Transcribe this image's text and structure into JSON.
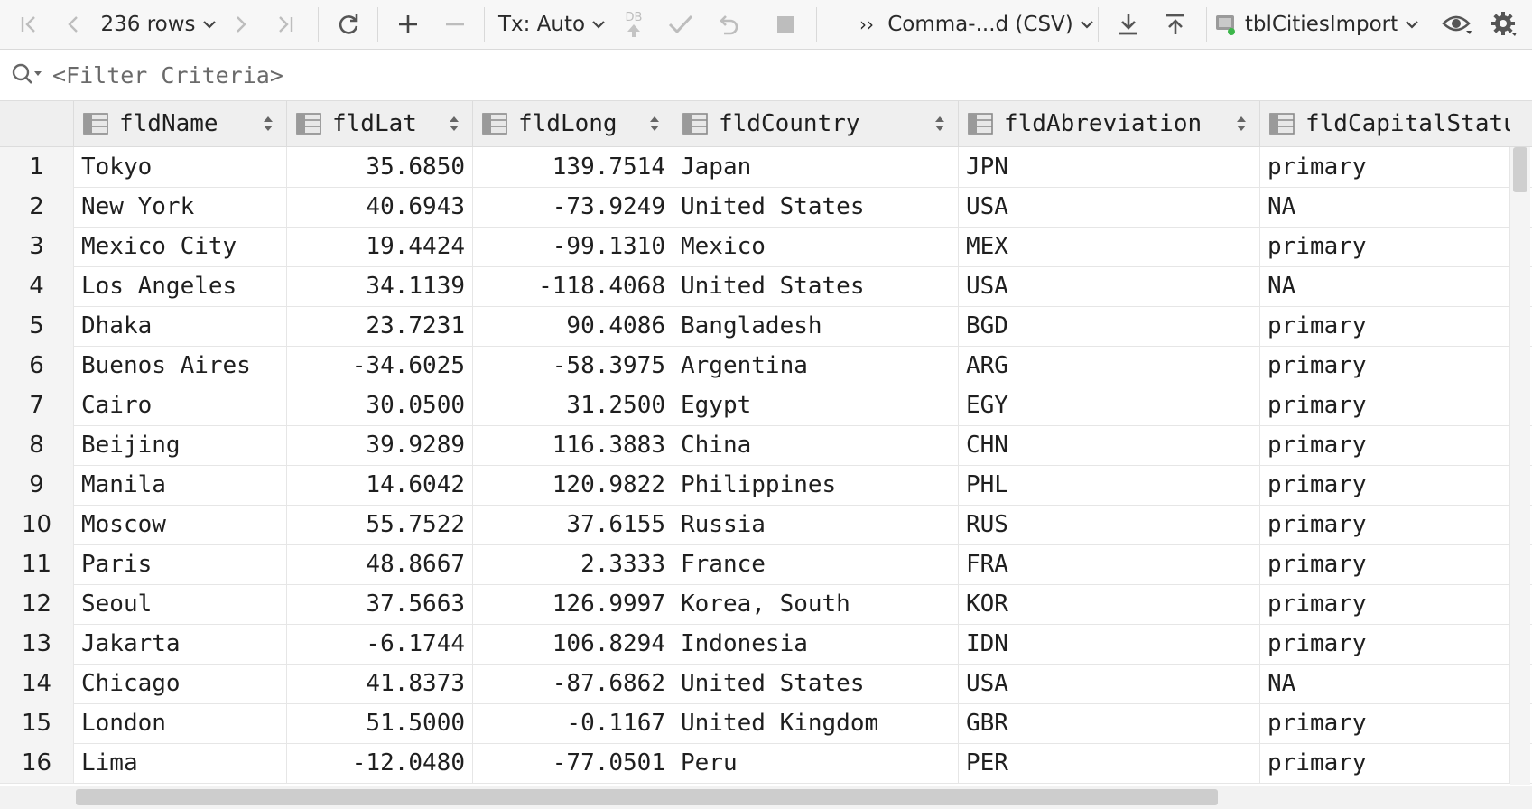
{
  "toolbar": {
    "rows_label": "236 rows",
    "tx_label": "Tx: Auto",
    "db_label": "DB",
    "more_label": "››",
    "format_label": "Comma-...d (CSV)",
    "table_label": "tblCitiesImport"
  },
  "filter": {
    "placeholder": "<Filter Criteria>"
  },
  "grid": {
    "columns": [
      "fldName",
      "fldLat",
      "fldLong",
      "fldCountry",
      "fldAbreviation",
      "fldCapitalStatu"
    ],
    "rows": [
      {
        "n": "1",
        "name": "Tokyo",
        "lat": "35.6850",
        "long": "139.7514",
        "country": "Japan",
        "abbr": "JPN",
        "capital": "primary"
      },
      {
        "n": "2",
        "name": "New York",
        "lat": "40.6943",
        "long": "-73.9249",
        "country": "United States",
        "abbr": "USA",
        "capital": "NA"
      },
      {
        "n": "3",
        "name": "Mexico City",
        "lat": "19.4424",
        "long": "-99.1310",
        "country": "Mexico",
        "abbr": "MEX",
        "capital": "primary"
      },
      {
        "n": "4",
        "name": "Los Angeles",
        "lat": "34.1139",
        "long": "-118.4068",
        "country": "United States",
        "abbr": "USA",
        "capital": "NA"
      },
      {
        "n": "5",
        "name": "Dhaka",
        "lat": "23.7231",
        "long": "90.4086",
        "country": "Bangladesh",
        "abbr": "BGD",
        "capital": "primary"
      },
      {
        "n": "6",
        "name": "Buenos Aires",
        "lat": "-34.6025",
        "long": "-58.3975",
        "country": "Argentina",
        "abbr": "ARG",
        "capital": "primary"
      },
      {
        "n": "7",
        "name": "Cairo",
        "lat": "30.0500",
        "long": "31.2500",
        "country": "Egypt",
        "abbr": "EGY",
        "capital": "primary"
      },
      {
        "n": "8",
        "name": "Beijing",
        "lat": "39.9289",
        "long": "116.3883",
        "country": "China",
        "abbr": "CHN",
        "capital": "primary"
      },
      {
        "n": "9",
        "name": "Manila",
        "lat": "14.6042",
        "long": "120.9822",
        "country": "Philippines",
        "abbr": "PHL",
        "capital": "primary"
      },
      {
        "n": "10",
        "name": "Moscow",
        "lat": "55.7522",
        "long": "37.6155",
        "country": "Russia",
        "abbr": "RUS",
        "capital": "primary"
      },
      {
        "n": "11",
        "name": "Paris",
        "lat": "48.8667",
        "long": "2.3333",
        "country": "France",
        "abbr": "FRA",
        "capital": "primary"
      },
      {
        "n": "12",
        "name": "Seoul",
        "lat": "37.5663",
        "long": "126.9997",
        "country": "Korea, South",
        "abbr": "KOR",
        "capital": "primary"
      },
      {
        "n": "13",
        "name": "Jakarta",
        "lat": "-6.1744",
        "long": "106.8294",
        "country": "Indonesia",
        "abbr": "IDN",
        "capital": "primary"
      },
      {
        "n": "14",
        "name": "Chicago",
        "lat": "41.8373",
        "long": "-87.6862",
        "country": "United States",
        "abbr": "USA",
        "capital": "NA"
      },
      {
        "n": "15",
        "name": "London",
        "lat": "51.5000",
        "long": "-0.1167",
        "country": "United Kingdom",
        "abbr": "GBR",
        "capital": "primary"
      },
      {
        "n": "16",
        "name": "Lima",
        "lat": "-12.0480",
        "long": "-77.0501",
        "country": "Peru",
        "abbr": "PER",
        "capital": "primary"
      }
    ]
  },
  "colors": {
    "accent_green": "#3cb64a",
    "icon_gray": "#555555"
  }
}
